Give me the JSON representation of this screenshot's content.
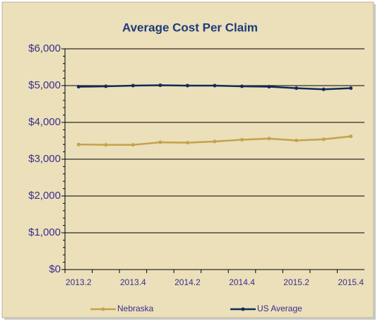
{
  "chart_data": {
    "type": "line",
    "title": "Average Cost Per Claim",
    "categories": [
      "2013.2",
      null,
      "2013.4",
      null,
      "2014.2",
      null,
      "2014.4",
      null,
      "2015.2",
      null,
      "2015.4"
    ],
    "series": [
      {
        "name": "Nebraska",
        "color": "#c4a24a",
        "values": [
          3400,
          3390,
          3390,
          3460,
          3450,
          3480,
          3530,
          3560,
          3510,
          3540,
          3620
        ]
      },
      {
        "name": "US Average",
        "color": "#102a5c",
        "values": [
          4970,
          4980,
          5000,
          5010,
          5000,
          5000,
          4980,
          4970,
          4930,
          4900,
          4930
        ]
      }
    ],
    "ylim": [
      0,
      6000
    ],
    "yticks": [
      {
        "value": 0,
        "label": "$0"
      },
      {
        "value": 1000,
        "label": "$1,000"
      },
      {
        "value": 2000,
        "label": "$2,000"
      },
      {
        "value": 3000,
        "label": "$3,000"
      },
      {
        "value": 4000,
        "label": "$4,000"
      },
      {
        "value": 5000,
        "label": "$5,000"
      },
      {
        "value": 6000,
        "label": "$6,000"
      }
    ],
    "grid": true,
    "legend": "bottom"
  }
}
